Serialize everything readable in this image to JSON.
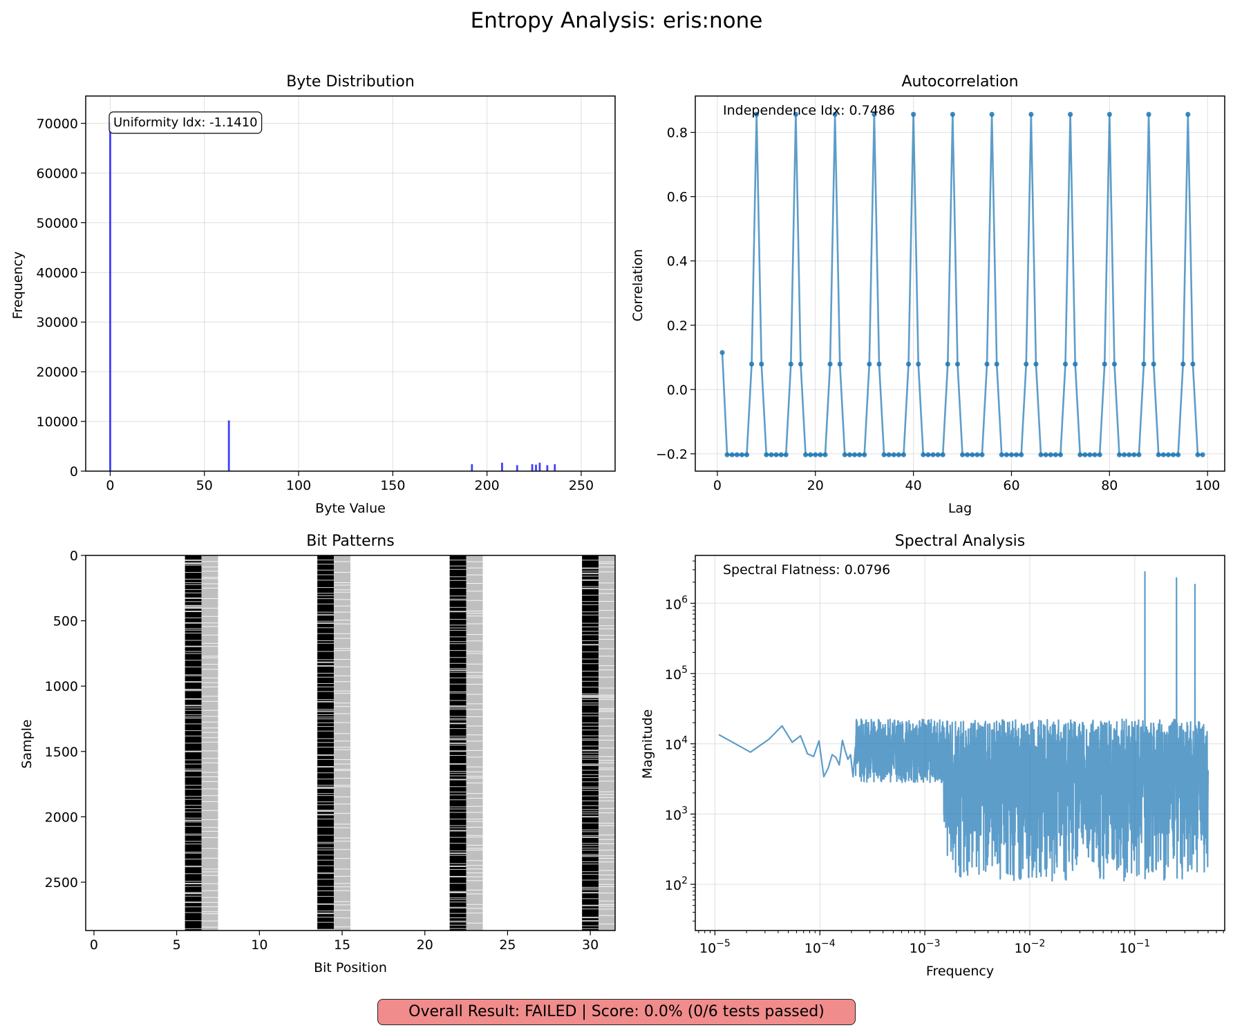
{
  "figure": {
    "suptitle": "Entropy Analysis: eris:none",
    "result_badge": "Overall Result: FAILED | Score: 0.0% (0/6 tests passed)",
    "accent_color": "#1f77b4",
    "fail_color": "#f08c8c"
  },
  "chart_data": [
    {
      "id": "byte-distribution",
      "type": "bar",
      "title": "Byte Distribution",
      "xlabel": "Byte Value",
      "ylabel": "Frequency",
      "xlim": [
        -13,
        268
      ],
      "ylim": [
        0,
        75500
      ],
      "xticks": [
        0,
        50,
        100,
        150,
        200,
        250
      ],
      "yticks": [
        0,
        10000,
        20000,
        30000,
        40000,
        50000,
        60000,
        70000
      ],
      "grid": true,
      "color": "#0000ff",
      "annotation": "Uniformity Idx: -1.1410",
      "points": [
        {
          "x": 0,
          "y": 70200
        },
        {
          "x": 63,
          "y": 10200
        },
        {
          "x": 192,
          "y": 1400
        },
        {
          "x": 208,
          "y": 1700
        },
        {
          "x": 216,
          "y": 1200
        },
        {
          "x": 224,
          "y": 1400
        },
        {
          "x": 226,
          "y": 1300
        },
        {
          "x": 228,
          "y": 1700
        },
        {
          "x": 232,
          "y": 1200
        },
        {
          "x": 236,
          "y": 1400
        }
      ]
    },
    {
      "id": "autocorrelation",
      "type": "line",
      "title": "Autocorrelation",
      "xlabel": "Lag",
      "ylabel": "Correlation",
      "xlim": [
        -4.5,
        103.5
      ],
      "ylim": [
        -0.254,
        0.913
      ],
      "xticks": [
        0,
        20,
        40,
        60,
        80,
        100
      ],
      "yticks": [
        -0.2,
        0.0,
        0.2,
        0.4,
        0.6,
        0.8
      ],
      "grid": true,
      "color": "#1f77b4",
      "annotation": "Independence Idx: 0.7486",
      "lags": [
        1,
        99
      ],
      "period": 8,
      "pattern": {
        "base": 0.115,
        "peak": 0.856,
        "shoulder": 0.079,
        "trough": -0.203
      }
    },
    {
      "id": "bit-patterns",
      "type": "heatmap",
      "title": "Bit Patterns",
      "xlabel": "Bit Position",
      "ylabel": "Sample",
      "xlim": [
        -0.5,
        31.5
      ],
      "ylim": [
        2870,
        0
      ],
      "xticks": [
        0,
        5,
        10,
        15,
        20,
        25,
        30
      ],
      "yticks": [
        0,
        500,
        1000,
        1500,
        2000,
        2500
      ],
      "grid": false,
      "dark_columns": [
        6,
        14,
        22,
        30
      ],
      "grey_columns": [
        7,
        15,
        23,
        31
      ],
      "dark_color": "#000000",
      "grey_color": "#bfbfbf"
    },
    {
      "id": "spectral-analysis",
      "type": "line",
      "title": "Spectral Analysis",
      "xlabel": "Frequency",
      "ylabel": "Magnitude",
      "xscale": "log",
      "yscale": "log",
      "xlim": [
        6.5e-06,
        0.72
      ],
      "ylim": [
        22,
        4800000
      ],
      "xtick_exponents": [
        -5,
        -4,
        -3,
        -2,
        -1
      ],
      "ytick_exponents": [
        2,
        3,
        4,
        5,
        6
      ],
      "grid": true,
      "color": "#1f77b4",
      "annotation": "Spectral Flatness: 0.0796",
      "f_min": 1.09e-05,
      "f_max": 0.5,
      "low_freq_points": [
        {
          "x": 1.09e-05,
          "y": 13500
        },
        {
          "x": 2.18e-05,
          "y": 7600
        },
        {
          "x": 3.27e-05,
          "y": 11600
        },
        {
          "x": 4.36e-05,
          "y": 18000
        },
        {
          "x": 5.45e-05,
          "y": 10500
        },
        {
          "x": 6.54e-05,
          "y": 13000
        },
        {
          "x": 7.63e-05,
          "y": 7200
        },
        {
          "x": 8.72e-05,
          "y": 6600
        },
        {
          "x": 9.81e-05,
          "y": 11000
        },
        {
          "x": 0.000109,
          "y": 3400
        },
        {
          "x": 0.00012,
          "y": 4500
        },
        {
          "x": 0.000131,
          "y": 7000
        },
        {
          "x": 0.000142,
          "y": 6400
        },
        {
          "x": 0.000153,
          "y": 5000
        },
        {
          "x": 0.000164,
          "y": 11200
        },
        {
          "x": 0.000174,
          "y": 8000
        },
        {
          "x": 0.000185,
          "y": 6000
        },
        {
          "x": 0.000196,
          "y": 7000
        },
        {
          "x": 0.000207,
          "y": 3400
        },
        {
          "x": 0.000218,
          "y": 9000
        }
      ],
      "peaks": [
        {
          "x": 0.125,
          "y": 2800000
        },
        {
          "x": 0.25,
          "y": 2300000
        },
        {
          "x": 0.375,
          "y": 1850000
        }
      ]
    }
  ]
}
